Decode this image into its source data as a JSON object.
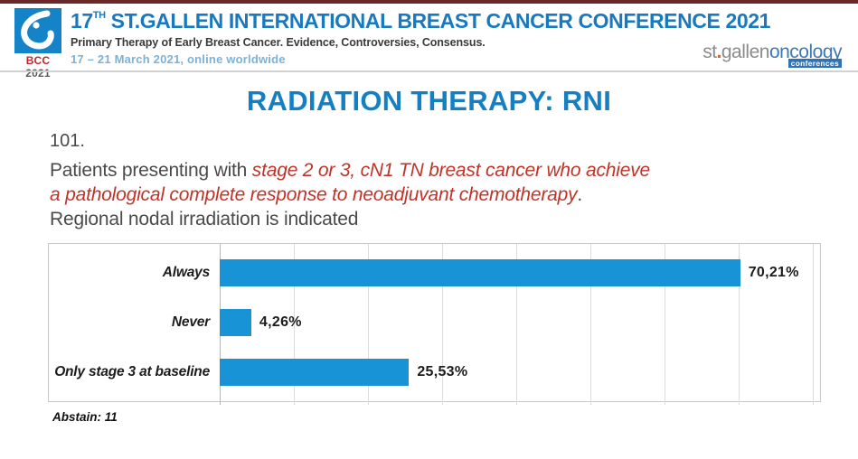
{
  "header": {
    "logo": {
      "icon": "bcc-drop-logo",
      "label_bcc": "BCC",
      "label_year": "2021"
    },
    "title_num": "17",
    "title_sup": "TH",
    "title_rest": " ST.GALLEN INTERNATIONAL BREAST CANCER CONFERENCE 2021",
    "subtitle": "Primary Therapy of Early Breast Cancer. Evidence, Controversies, Consensus.",
    "dates": "17 – 21 March 2021, online worldwide",
    "brand": {
      "st": "st",
      "dot": ".",
      "gallen": "gallen",
      "oncology": "oncology",
      "conferences": "conferences"
    }
  },
  "slide": {
    "title": "RADIATION THERAPY: RNI",
    "question_number": "101.",
    "q_plain_1": "Patients presenting with ",
    "q_red_1": "stage 2 or 3, cN1 TN breast cancer who achieve",
    "q_red_2": "a pathological complete response to neoadjuvant chemotherapy",
    "q_plain_2": ".",
    "q_line_3": "Regional nodal irradiation is indicated",
    "abstain_note": "Abstain: 11"
  },
  "chart_data": {
    "type": "bar",
    "orientation": "horizontal",
    "title": "",
    "categories": [
      "Always",
      "Never",
      "Only stage 3 at baseline"
    ],
    "values": [
      70.21,
      4.26,
      25.53
    ],
    "value_labels": [
      "70,21%",
      "4,26%",
      "25,53%"
    ],
    "xlabel": "",
    "ylabel": "",
    "xlim": [
      0,
      80
    ],
    "gridline_step": 10,
    "grid": true,
    "legend": false,
    "bar_color": "#1793d6",
    "annotation": "Abstain: 11"
  },
  "colors": {
    "top_strip": "#6e2728",
    "conference_title_blue": "#1879be",
    "slide_title_blue": "#157fc4",
    "dates_light_blue": "#7cb1d8",
    "bar_blue": "#1793d6",
    "question_red": "#c23227",
    "question_gray": "#4a4a4a",
    "bcc_red": "#c0272d",
    "brand_gray": "#8c8c8c",
    "brand_blue": "#3d7ab5"
  }
}
